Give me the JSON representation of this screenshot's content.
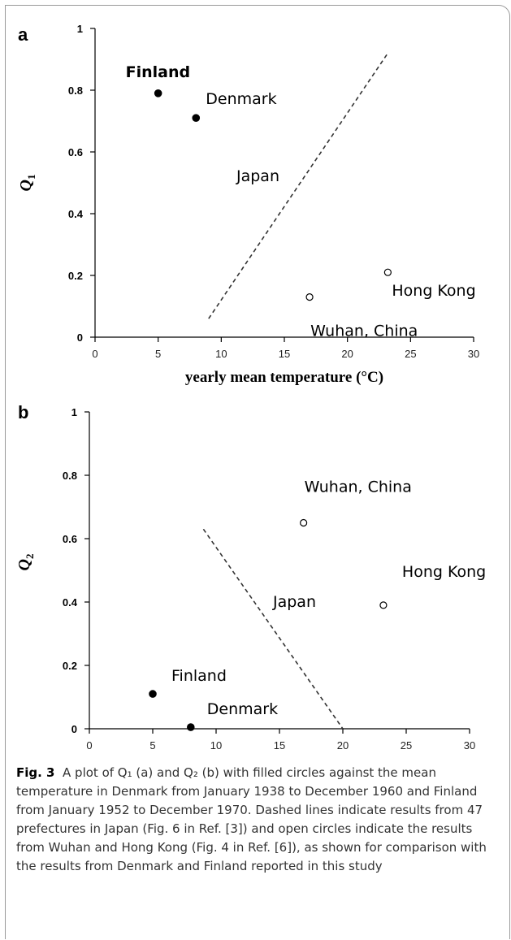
{
  "caption": {
    "fig_label": "Fig. 3",
    "text": "A plot of Q₁ (a) and Q₂ (b) with filled circles against the mean temperature in Denmark from January 1938 to December 1960 and Finland from January 1952 to December 1970. Dashed lines indicate results from 47 prefectures in Japan (Fig. 6 in Ref. [3]) and open circles indicate the results from Wuhan and Hong Kong (Fig. 4 in Ref. [6]), as shown for comparison with the results from Denmark and Finland reported in this study"
  },
  "chart_data": [
    {
      "type": "scatter",
      "panel": "a",
      "xlabel": "yearly mean temperature (°C)",
      "ylabel": "Q1",
      "xlim": [
        0,
        30
      ],
      "ylim": [
        0,
        1
      ],
      "xticks": [
        "0",
        "5",
        "10",
        "15",
        "20",
        "25",
        "30"
      ],
      "yticks": [
        "0",
        "0.2",
        "0.4",
        "0.6",
        "0.8",
        "1"
      ],
      "points": [
        {
          "label": "Finland",
          "x": 5,
          "y": 0.79,
          "filled": true
        },
        {
          "label": "Denmark",
          "x": 8,
          "y": 0.71,
          "filled": true
        },
        {
          "label": "Wuhan, China",
          "x": 17,
          "y": 0.13,
          "filled": false
        },
        {
          "label": "Hong Kong",
          "x": 23.2,
          "y": 0.21,
          "filled": false
        }
      ],
      "dashed_line": {
        "label": "Japan",
        "x": [
          9,
          23.2
        ],
        "y": [
          0.06,
          0.92
        ]
      }
    },
    {
      "type": "scatter",
      "panel": "b",
      "xlabel": "yearly mean temperature (°C)",
      "ylabel": "Q2",
      "xlim": [
        0,
        30
      ],
      "ylim": [
        0,
        1
      ],
      "xticks": [
        "0",
        "5",
        "10",
        "15",
        "20",
        "25",
        "30"
      ],
      "yticks": [
        "0",
        "0.2",
        "0.4",
        "0.6",
        "0.8",
        "1"
      ],
      "points": [
        {
          "label": "Finland",
          "x": 5,
          "y": 0.11,
          "filled": true
        },
        {
          "label": "Denmark",
          "x": 8,
          "y": 0.005,
          "filled": true
        },
        {
          "label": "Wuhan, China",
          "x": 16.9,
          "y": 0.65,
          "filled": false
        },
        {
          "label": "Hong Kong",
          "x": 23.2,
          "y": 0.39,
          "filled": false
        }
      ],
      "dashed_line": {
        "label": "Japan",
        "x": [
          9,
          20
        ],
        "y": [
          0.63,
          0
        ]
      }
    }
  ],
  "colors": {
    "marker": "#000000",
    "axis": "#000000",
    "caption_text": "#333333"
  }
}
